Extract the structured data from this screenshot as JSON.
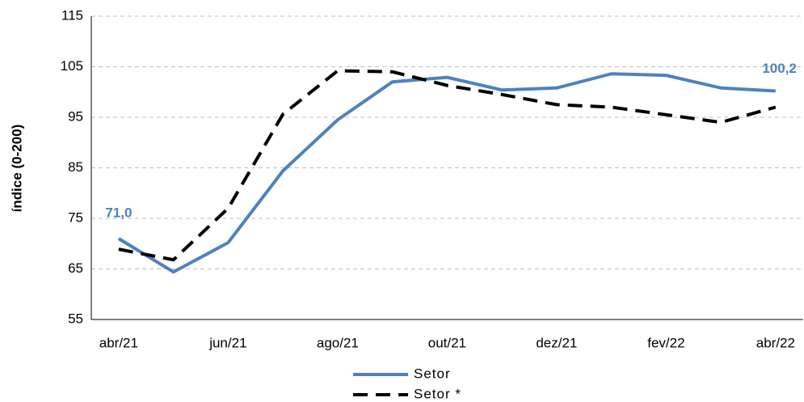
{
  "chart_data": {
    "type": "line",
    "y_label": "índice (0-200)",
    "categories": [
      "abr/21",
      null,
      "jun/21",
      null,
      "ago/21",
      null,
      "out/21",
      null,
      "dez/21",
      null,
      "fev/22",
      null,
      "abr/22"
    ],
    "series": [
      {
        "name": "Setor",
        "color": "#4f81bd",
        "dash": false,
        "values": [
          71.0,
          64.4,
          70.2,
          84.4,
          94.5,
          102.0,
          102.9,
          100.4,
          100.8,
          103.6,
          103.3,
          100.8,
          100.2
        ],
        "value_labels": [
          "71,0",
          null,
          null,
          null,
          null,
          null,
          null,
          null,
          null,
          null,
          null,
          null,
          "100,2"
        ]
      },
      {
        "name": "Setor *",
        "color": "#000000",
        "dash": true,
        "values": [
          68.9,
          66.8,
          77.0,
          95.6,
          104.2,
          104.0,
          101.3,
          99.5,
          97.5,
          97.0,
          95.5,
          94.0,
          97.0
        ]
      }
    ],
    "ylim": [
      55,
      115
    ],
    "yticks": [
      55,
      65,
      75,
      85,
      95,
      105,
      115
    ],
    "grid": true
  }
}
